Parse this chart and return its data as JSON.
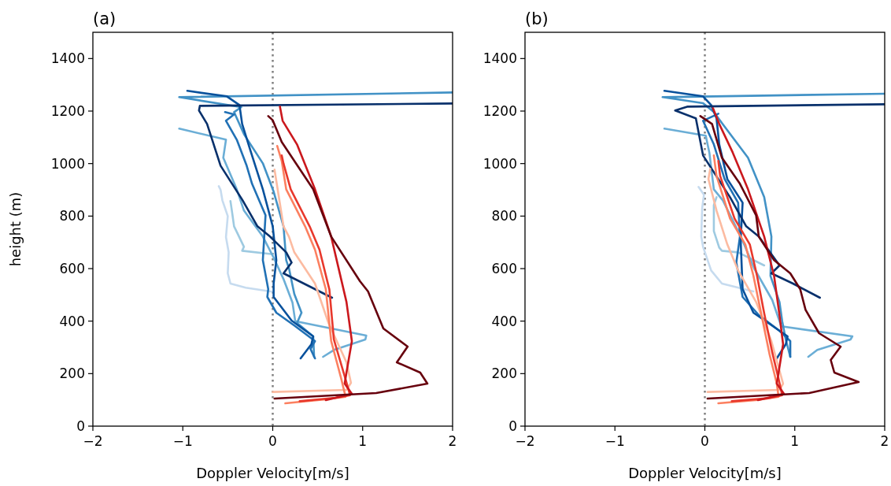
{
  "chart_data": [
    {
      "type": "line",
      "title": "(a)",
      "xlabel": "Doppler Velocity[m/s]",
      "ylabel": "height (m)",
      "xlim": [
        -2,
        2
      ],
      "ylim": [
        0,
        1500
      ],
      "xticks": [
        -2,
        -1,
        0,
        1,
        2
      ],
      "yticks": [
        0,
        200,
        400,
        600,
        800,
        1000,
        1200,
        1400
      ],
      "ref_lines": [
        {
          "axis": "x",
          "value": 0,
          "color": "#808080",
          "line_style": "dotted"
        }
      ],
      "series": [
        {
          "color": "#c6dbef",
          "x": [
            -0.01,
            -0.3,
            -0.47,
            -0.5,
            -0.49,
            -0.52,
            -0.5,
            -0.56,
            -0.58,
            -0.6
          ],
          "values": [
            512,
            527,
            543,
            582,
            662,
            720,
            800,
            860,
            900,
            914
          ]
        },
        {
          "color": "#9ecae1",
          "x": [
            0.0,
            -0.34,
            -0.32,
            -0.4,
            -0.43,
            -0.45,
            -0.47
          ],
          "values": [
            655,
            668,
            683,
            740,
            761,
            810,
            857
          ]
        },
        {
          "color": "#6baed6",
          "x": [
            0.56,
            0.68,
            1.03,
            1.04,
            0.25,
            0.22,
            0.12,
            0.01,
            -0.11,
            -0.32,
            -0.4,
            -0.55,
            -0.52,
            -1.04
          ],
          "values": [
            264,
            290,
            330,
            345,
            400,
            470,
            560,
            642,
            722,
            821,
            902,
            1022,
            1091,
            1133
          ]
        },
        {
          "color": "#4292c6",
          "x": [
            0.46,
            0.45,
            0.27,
            0.32,
            0.24,
            0.18,
            0.15,
            0.12,
            0.01,
            -0.11,
            -0.32,
            -0.43,
            -0.35,
            -1.04,
            2.0
          ],
          "values": [
            264,
            342,
            393,
            432,
            503,
            602,
            632,
            761,
            893,
            1001,
            1112,
            1196,
            1215,
            1253,
            1271
          ]
        },
        {
          "color": "#2171b5",
          "x": [
            0.47,
            0.42,
            0.47,
            0.24,
            0.04,
            -0.06,
            -0.05,
            -0.11,
            -0.08,
            -0.23,
            -0.29,
            -0.4,
            -0.52,
            -0.43,
            -0.53
          ],
          "values": [
            258,
            294,
            324,
            383,
            432,
            492,
            522,
            632,
            803,
            923,
            992,
            1091,
            1163,
            1187,
            1196
          ]
        },
        {
          "color": "#08519c",
          "x": [
            0.31,
            0.43,
            0.45,
            0.21,
            0.01,
            0.01,
            0.04,
            0.0,
            -0.11,
            -0.25,
            -0.34,
            -0.37,
            -0.51,
            -0.95
          ],
          "values": [
            258,
            312,
            342,
            402,
            492,
            543,
            632,
            761,
            902,
            1052,
            1151,
            1223,
            1256,
            1277
          ]
        },
        {
          "color": "#08306b",
          "x": [
            0.66,
            0.12,
            0.21,
            0.15,
            -0.03,
            -0.17,
            -0.34,
            -0.58,
            -0.73,
            -0.82,
            -0.81,
            2.0
          ],
          "values": [
            489,
            582,
            623,
            662,
            722,
            761,
            863,
            992,
            1151,
            1202,
            1220,
            1229
          ]
        },
        {
          "color": "#fcbba1",
          "x": [
            0.0,
            0.82,
            0.87,
            0.82,
            0.62,
            0.47,
            0.24,
            0.18,
            0.12,
            0.02
          ],
          "values": [
            130,
            138,
            165,
            243,
            393,
            543,
            662,
            722,
            761,
            977
          ]
        },
        {
          "color": "#fc8060",
          "x": [
            0.14,
            0.59,
            0.81,
            0.76,
            0.65,
            0.59,
            0.47,
            0.36,
            0.15,
            0.1,
            0.05
          ],
          "values": [
            87,
            102,
            112,
            183,
            324,
            522,
            672,
            761,
            902,
            1010,
            1067
          ]
        },
        {
          "color": "#e8382c",
          "x": [
            0.3,
            0.7,
            0.86,
            0.8,
            0.68,
            0.63,
            0.52,
            0.41,
            0.2,
            0.12,
            0.1
          ],
          "values": [
            95,
            108,
            118,
            190,
            330,
            520,
            672,
            761,
            902,
            1000,
            1031
          ]
        },
        {
          "color": "#cb181d",
          "x": [
            0.59,
            0.88,
            0.8,
            0.82,
            0.88,
            0.82,
            0.65,
            0.47,
            0.27,
            0.11,
            0.08
          ],
          "values": [
            99,
            123,
            162,
            204,
            324,
            473,
            722,
            902,
            1073,
            1163,
            1217
          ]
        },
        {
          "color": "#67000d",
          "x": [
            0.02,
            1.15,
            1.72,
            1.64,
            1.38,
            1.5,
            1.23,
            1.06,
            0.97,
            0.65,
            0.45,
            0.1,
            0.0,
            -0.05
          ],
          "values": [
            105,
            126,
            162,
            204,
            243,
            303,
            372,
            513,
            552,
            722,
            902,
            1082,
            1165,
            1181
          ]
        }
      ]
    },
    {
      "type": "line",
      "title": "(b)",
      "xlabel": "Doppler Velocity[m/s]",
      "xlim": [
        -2,
        2
      ],
      "ylim": [
        0,
        1500
      ],
      "xticks": [
        -2,
        -1,
        0,
        1,
        2
      ],
      "yticks": [
        0,
        200,
        400,
        600,
        800,
        1000,
        1200,
        1400
      ],
      "ref_lines": [
        {
          "axis": "x",
          "value": 0,
          "color": "#808080",
          "line_style": "dotted"
        }
      ],
      "series": [
        {
          "color": "#c6dbef",
          "x": [
            0.54,
            0.19,
            0.07,
            -0.02,
            -0.04,
            -0.03,
            -0.01,
            -0.07
          ],
          "values": [
            513,
            543,
            593,
            683,
            722,
            830,
            881,
            911
          ]
        },
        {
          "color": "#9ecae1",
          "x": [
            0.66,
            0.37,
            0.19,
            0.16,
            0.1,
            0.1,
            0.13
          ],
          "values": [
            612,
            662,
            668,
            680,
            743,
            842,
            872
          ]
        },
        {
          "color": "#6baed6",
          "x": [
            1.15,
            1.25,
            1.62,
            1.64,
            0.85,
            0.75,
            0.55,
            0.4,
            0.2,
            0.1,
            0.05,
            0.01,
            -0.45
          ],
          "values": [
            264,
            290,
            330,
            342,
            380,
            480,
            600,
            722,
            860,
            902,
            1042,
            1106,
            1133
          ]
        },
        {
          "color": "#4292c6",
          "x": [
            0.95,
            0.9,
            0.86,
            0.83,
            0.73,
            0.74,
            0.66,
            0.48,
            0.2,
            0.1,
            -0.02,
            -0.47,
            2.0
          ],
          "values": [
            264,
            330,
            400,
            473,
            572,
            722,
            872,
            1022,
            1150,
            1196,
            1230,
            1253,
            1266
          ]
        },
        {
          "color": "#2171b5",
          "x": [
            0.95,
            0.95,
            0.83,
            0.6,
            0.42,
            0.35,
            0.39,
            0.37,
            0.22,
            0.1,
            -0.02,
            0.15
          ],
          "values": [
            264,
            324,
            363,
            423,
            492,
            623,
            722,
            851,
            941,
            1073,
            1163,
            1190
          ]
        },
        {
          "color": "#08519c",
          "x": [
            0.8,
            0.9,
            0.92,
            0.54,
            0.42,
            0.4,
            0.4,
            0.42,
            0.25,
            0.16,
            0.13,
            0.07,
            -0.02,
            -0.45
          ],
          "values": [
            258,
            312,
            342,
            432,
            522,
            692,
            722,
            851,
            941,
            1073,
            1172,
            1223,
            1256,
            1277
          ]
        },
        {
          "color": "#08306b",
          "x": [
            1.28,
            0.98,
            0.74,
            0.83,
            0.6,
            0.46,
            0.28,
            -0.02,
            -0.1,
            -0.33,
            -0.19,
            2.0
          ],
          "values": [
            489,
            543,
            582,
            612,
            722,
            761,
            872,
            1031,
            1172,
            1202,
            1217,
            1226
          ]
        },
        {
          "color": "#fcbba1",
          "x": [
            0.03,
            0.83,
            0.87,
            0.74,
            0.57,
            0.37,
            0.25,
            0.13,
            0.04,
            0.06
          ],
          "values": [
            130,
            138,
            162,
            324,
            473,
            593,
            692,
            821,
            941,
            980
          ]
        },
        {
          "color": "#fc8060",
          "x": [
            0.15,
            0.59,
            0.82,
            0.8,
            0.72,
            0.63,
            0.54,
            0.45,
            0.28,
            0.13,
            0.1
          ],
          "values": [
            87,
            100,
            112,
            162,
            273,
            423,
            573,
            692,
            791,
            953,
            1031
          ]
        },
        {
          "color": "#e8382c",
          "x": [
            0.3,
            0.7,
            0.86,
            0.82,
            0.75,
            0.66,
            0.58,
            0.5,
            0.33,
            0.17,
            0.15
          ],
          "values": [
            95,
            106,
            118,
            180,
            280,
            430,
            573,
            692,
            791,
            953,
            1010
          ]
        },
        {
          "color": "#cb181d",
          "x": [
            0.59,
            0.88,
            0.8,
            0.82,
            0.87,
            0.83,
            0.77,
            0.66,
            0.48,
            0.31,
            0.16,
            0.09
          ],
          "values": [
            99,
            123,
            162,
            204,
            312,
            423,
            572,
            722,
            902,
            1042,
            1151,
            1211
          ]
        },
        {
          "color": "#67000d",
          "x": [
            0.03,
            1.16,
            1.71,
            1.44,
            1.4,
            1.51,
            1.27,
            1.12,
            1.06,
            0.95,
            0.77,
            0.6,
            0.57,
            0.39,
            0.19,
            0.08,
            -0.05
          ],
          "values": [
            105,
            126,
            168,
            204,
            252,
            303,
            354,
            443,
            522,
            582,
            632,
            722,
            803,
            923,
            1022,
            1151,
            1181
          ]
        }
      ]
    }
  ]
}
